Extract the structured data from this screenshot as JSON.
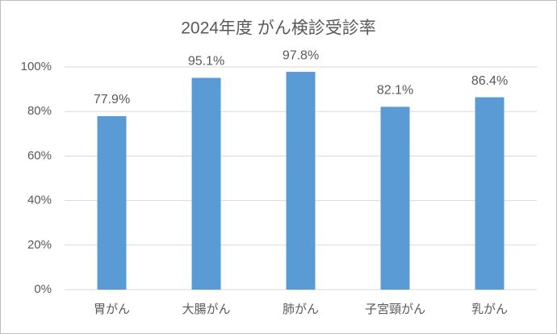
{
  "chart_data": {
    "type": "bar",
    "title": "2024年度 がん検診受診率",
    "categories": [
      "胃がん",
      "大腸がん",
      "肺がん",
      "子宮頸がん",
      "乳がん"
    ],
    "values": [
      77.9,
      95.1,
      97.8,
      82.1,
      86.4
    ],
    "value_labels": [
      "77.9%",
      "95.1%",
      "97.8%",
      "82.1%",
      "86.4%"
    ],
    "color": "#5b9bd5",
    "ylim": [
      0,
      100
    ],
    "yticks": [
      {
        "value": 0,
        "label": "0%"
      },
      {
        "value": 20,
        "label": "20%"
      },
      {
        "value": 40,
        "label": "40%"
      },
      {
        "value": 60,
        "label": "60%"
      },
      {
        "value": 80,
        "label": "80%"
      },
      {
        "value": 100,
        "label": "100%"
      }
    ],
    "grid": true
  }
}
